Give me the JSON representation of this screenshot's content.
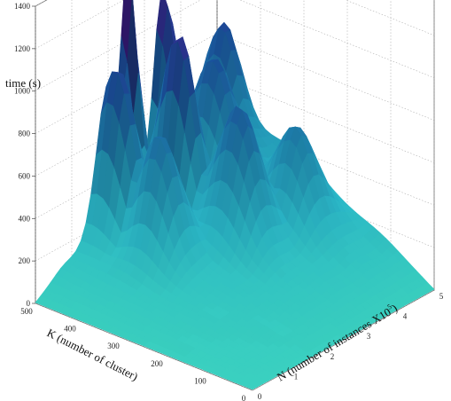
{
  "chart_data": {
    "type": "surface3d",
    "title": "",
    "zlabel": "time (s)",
    "ylabel": "K (number of cluster)",
    "xlabel": "N (number of instances X10",
    "xlabel_exponent": "5",
    "xlabel_close": ")",
    "zlim": [
      0,
      1400
    ],
    "ylim": [
      0,
      500
    ],
    "xlim": [
      0,
      5
    ],
    "z_ticks": [
      "0",
      "200",
      "400",
      "600",
      "800",
      "1000",
      "1200",
      "1400"
    ],
    "y_ticks": [
      "0",
      "100",
      "200",
      "300",
      "400",
      "500"
    ],
    "x_ticks": [
      "0",
      "1",
      "2",
      "3",
      "4",
      "5"
    ],
    "grid": true,
    "colormap": [
      "#3ad0c0",
      "#2bb8c8",
      "#1f88b0",
      "#1a4f9a",
      "#3a1f8c",
      "#7a1fa0"
    ],
    "description_points": [
      {
        "N": 2.5,
        "K": 500,
        "time": 1380
      },
      {
        "N": 3.5,
        "K": 500,
        "time": 1150
      },
      {
        "N": 3.0,
        "K": 400,
        "time": 1050
      },
      {
        "N": 4.0,
        "K": 400,
        "time": 850
      },
      {
        "N": 5.0,
        "K": 500,
        "time": 900
      },
      {
        "N": 2.0,
        "K": 500,
        "time": 700
      },
      {
        "N": 1.0,
        "K": 400,
        "time": 300
      },
      {
        "N": 5.0,
        "K": 100,
        "time": 250
      },
      {
        "N": 0.0,
        "K": 0,
        "time": 0
      }
    ]
  }
}
